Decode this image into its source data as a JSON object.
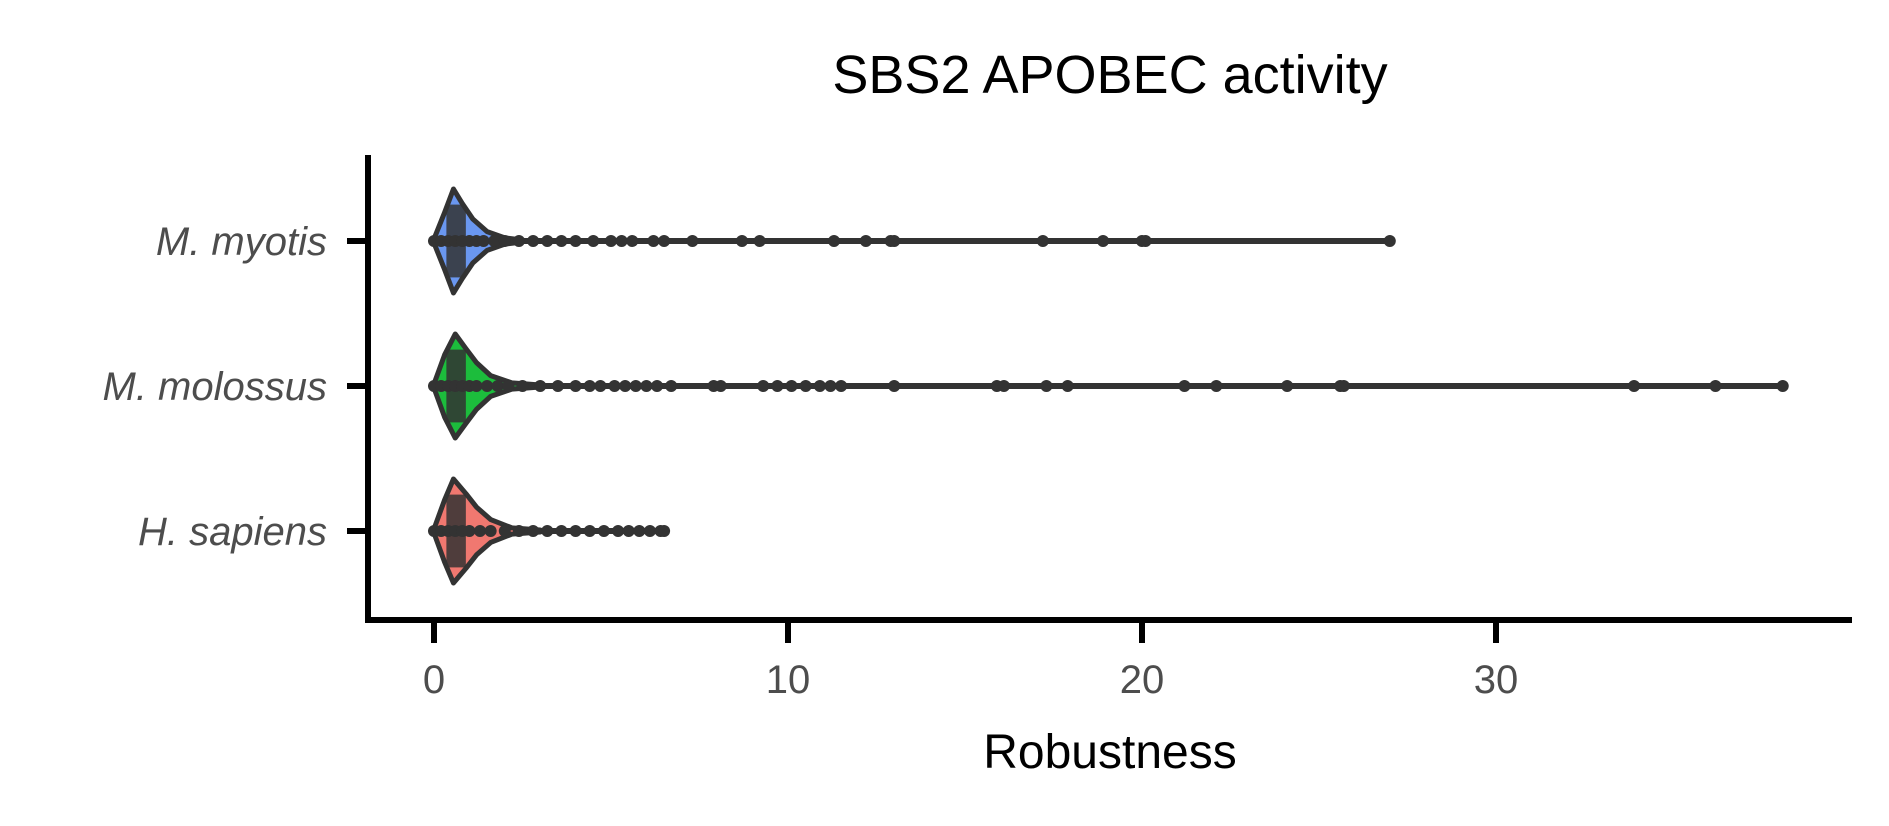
{
  "chart_data": {
    "type": "violin",
    "title": "SBS2 APOBEC activity",
    "xlabel": "Robustness",
    "ylabel": "",
    "xlim": [
      -1.9,
      40.0
    ],
    "xticks": [
      0,
      10,
      20,
      30
    ],
    "xtick_labels": [
      "0",
      "10",
      "20",
      "30"
    ],
    "categories": [
      "M. myotis",
      "M. molossus",
      "H. sapiens"
    ],
    "grid": false,
    "legend": "none",
    "series": [
      {
        "category": "M. myotis",
        "color": "#6a97f0",
        "outline_color": "#333333",
        "violin_profile": [
          [
            0,
            0.04
          ],
          [
            0.3,
            0.55
          ],
          [
            0.55,
            1.0
          ],
          [
            0.8,
            0.72
          ],
          [
            1.1,
            0.42
          ],
          [
            1.5,
            0.18
          ],
          [
            2.0,
            0.06
          ],
          [
            2.5,
            0.02
          ]
        ],
        "points": [
          0.0,
          0.2,
          0.4,
          0.6,
          0.8,
          1.0,
          1.2,
          1.4,
          1.7,
          2.0,
          2.4,
          2.8,
          3.2,
          3.6,
          4.0,
          4.5,
          5.0,
          5.3,
          5.6,
          6.2,
          6.5,
          7.3,
          8.7,
          9.2,
          11.3,
          12.2,
          12.9,
          13.0,
          17.2,
          18.9,
          20.0,
          20.1,
          27.0
        ]
      },
      {
        "category": "M. molossus",
        "color": "#1cbd3c",
        "outline_color": "#333333",
        "violin_profile": [
          [
            0,
            0.04
          ],
          [
            0.3,
            0.6
          ],
          [
            0.6,
            1.0
          ],
          [
            0.9,
            0.72
          ],
          [
            1.2,
            0.45
          ],
          [
            1.6,
            0.2
          ],
          [
            2.2,
            0.06
          ],
          [
            3.0,
            0.02
          ]
        ],
        "points": [
          0.0,
          0.2,
          0.4,
          0.6,
          0.8,
          1.0,
          1.2,
          1.5,
          1.8,
          2.1,
          2.5,
          3.0,
          3.5,
          4.0,
          4.4,
          4.7,
          5.1,
          5.4,
          5.7,
          6.0,
          6.3,
          6.7,
          7.9,
          8.1,
          9.3,
          9.7,
          10.1,
          10.5,
          10.9,
          11.2,
          11.5,
          13.0,
          15.9,
          16.1,
          17.3,
          17.9,
          21.2,
          22.1,
          24.1,
          25.6,
          25.7,
          33.9,
          36.2,
          38.1
        ]
      },
      {
        "category": "H. sapiens",
        "color": "#f07870",
        "outline_color": "#333333",
        "violin_profile": [
          [
            0,
            0.04
          ],
          [
            0.3,
            0.6
          ],
          [
            0.55,
            1.0
          ],
          [
            0.9,
            0.72
          ],
          [
            1.2,
            0.46
          ],
          [
            1.6,
            0.22
          ],
          [
            2.2,
            0.06
          ],
          [
            3.0,
            0.02
          ]
        ],
        "points": [
          0.0,
          0.2,
          0.4,
          0.6,
          0.8,
          1.0,
          1.3,
          1.6,
          2.0,
          2.4,
          2.8,
          3.2,
          3.6,
          4.0,
          4.4,
          4.8,
          5.2,
          5.5,
          5.8,
          6.1,
          6.4,
          6.5
        ]
      }
    ]
  }
}
